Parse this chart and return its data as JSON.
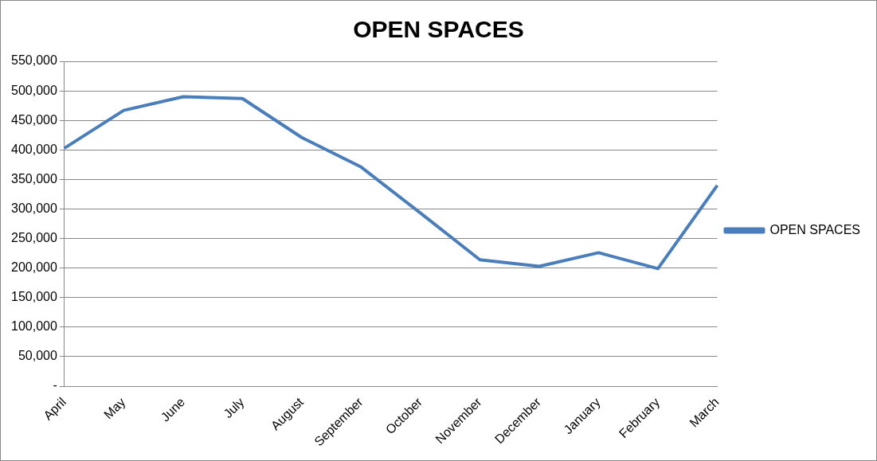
{
  "chart_data": {
    "type": "line",
    "title": "OPEN SPACES",
    "categories": [
      "April",
      "May",
      "June",
      "July",
      "August",
      "September",
      "October",
      "November",
      "December",
      "January",
      "February",
      "March"
    ],
    "series": [
      {
        "name": "OPEN SPACES",
        "color": "#4a7ebb",
        "values": [
          403000,
          467000,
          490000,
          487000,
          421000,
          371000,
          293000,
          214000,
          203000,
          226000,
          199000,
          340000
        ]
      }
    ],
    "ylim": [
      0,
      550000
    ],
    "yticks": [
      {
        "value": 0,
        "label": "-"
      },
      {
        "value": 50000,
        "label": "50,000"
      },
      {
        "value": 100000,
        "label": "100,000"
      },
      {
        "value": 150000,
        "label": "150,000"
      },
      {
        "value": 200000,
        "label": "200,000"
      },
      {
        "value": 250000,
        "label": "250,000"
      },
      {
        "value": 300000,
        "label": "300,000"
      },
      {
        "value": 350000,
        "label": "350,000"
      },
      {
        "value": 400000,
        "label": "400,000"
      },
      {
        "value": 450000,
        "label": "450,000"
      },
      {
        "value": 500000,
        "label": "500,000"
      },
      {
        "value": 550000,
        "label": "550,000"
      }
    ],
    "grid": "y",
    "legend": "right",
    "marker": "none",
    "line_style": "solid"
  }
}
